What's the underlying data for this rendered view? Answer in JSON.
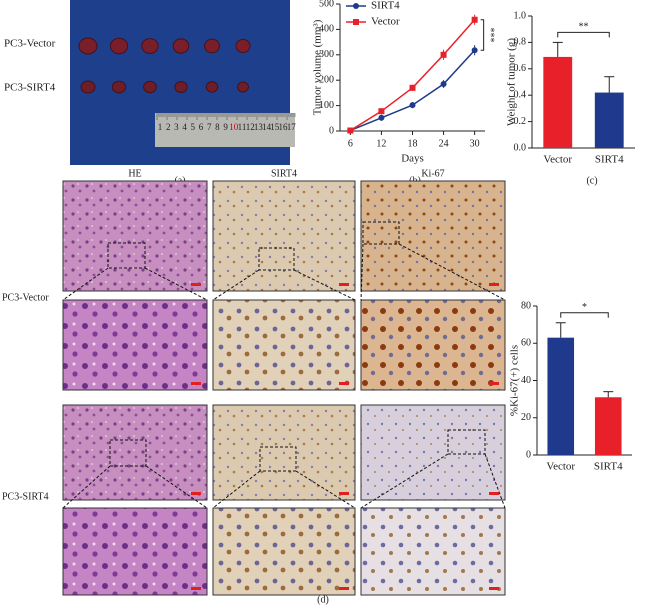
{
  "chart_data": [
    {
      "type": "line",
      "x": [
        6,
        12,
        18,
        24,
        30
      ],
      "xlim": [
        4,
        32
      ],
      "xticks": [
        6,
        12,
        18,
        24,
        30
      ],
      "ylim": [
        0,
        500
      ],
      "yticks": [
        0,
        100,
        200,
        300,
        400,
        500
      ],
      "xlabel": "Days",
      "ylabel": "Tumor volume (mm³)",
      "legend": "upper left",
      "annotation": "***",
      "series": [
        {
          "name": "SIRT4",
          "color": "#1f3a8c",
          "marker": "circle",
          "values": [
            2,
            52,
            102,
            185,
            318
          ],
          "errors": [
            2,
            12,
            12,
            16,
            20
          ]
        },
        {
          "name": "Vector",
          "color": "#e8202a",
          "marker": "square",
          "values": [
            2,
            78,
            170,
            300,
            438
          ],
          "errors": [
            2,
            10,
            12,
            20,
            20
          ]
        }
      ]
    },
    {
      "type": "bar",
      "categories": [
        "Vector",
        "SIRT4"
      ],
      "values": [
        0.69,
        0.42
      ],
      "errors": [
        0.11,
        0.12
      ],
      "colors": [
        "#e8202a",
        "#1f3a8c"
      ],
      "ylim": [
        0,
        1
      ],
      "yticks": [
        {
          "value": 0,
          "label": "0.0"
        },
        0.2,
        0.4,
        0.6,
        0.8,
        {
          "value": 1,
          "label": "1.0"
        }
      ],
      "ylabel": "Weight of tumor (g)",
      "annotation": "**"
    },
    {
      "type": "bar",
      "categories": [
        "Vector",
        "SIRT4"
      ],
      "values": [
        63,
        31
      ],
      "errors": [
        8,
        3
      ],
      "colors": [
        "#1f3a8c",
        "#e8202a"
      ],
      "ylim": [
        0,
        80
      ],
      "yticks": [
        0,
        20,
        40,
        60,
        80
      ],
      "ylabel": "%Ki-67(+) cells",
      "annotation": "*"
    }
  ],
  "panels": {
    "a": "(a)",
    "b": "(b)",
    "c": "(c)",
    "d": "(d)"
  },
  "photo": {
    "rows": [
      "PC3-Vector",
      "PC3-SIRT4"
    ],
    "ruler": [
      "1",
      "2",
      "3",
      "4",
      "5",
      "6",
      "7",
      "8",
      "9",
      "10",
      "11",
      "12",
      "13",
      "14",
      "15",
      "16",
      "17"
    ]
  },
  "histology": {
    "columns": [
      "HE",
      "SIRT4",
      "Ki-67"
    ],
    "rows": [
      "PC3-Vector",
      "PC3-SIRT4"
    ]
  }
}
